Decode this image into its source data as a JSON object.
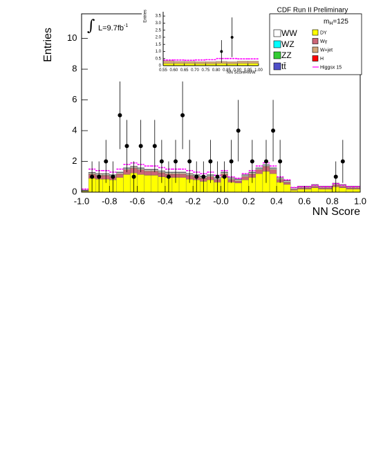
{
  "chart_data": [
    {
      "type": "histogram",
      "x_label": "NN Score",
      "y_label": "Entries",
      "annotations": {
        "preliminary": "CDF Run II Preliminary",
        "integral": "∫",
        "lumi": [
          "L=9.7fb",
          "-1"
        ],
        "mass": [
          "m",
          "H",
          "=125"
        ]
      },
      "xlim": [
        -1,
        1
      ],
      "ylim": [
        0,
        11.6
      ],
      "xticks": [
        {
          "value": -1,
          "label": "-1.0"
        },
        -0.8,
        -0.6,
        -0.4,
        -0.2,
        {
          "value": 0,
          "label": "-0.0"
        },
        0.2,
        0.4,
        0.6,
        0.8,
        {
          "value": 1,
          "label": "1.0"
        }
      ],
      "yticks": [
        0,
        2,
        4,
        6,
        8,
        10
      ],
      "bins": [
        -1,
        -0.95,
        -0.9,
        -0.85,
        -0.8,
        -0.75,
        -0.7,
        -0.65,
        -0.6,
        -0.55,
        -0.5,
        -0.45,
        -0.4,
        -0.35,
        -0.3,
        -0.25,
        -0.2,
        -0.15,
        -0.1,
        -0.05,
        0,
        0.05,
        0.1,
        0.15,
        0.2,
        0.25,
        0.3,
        0.35,
        0.4,
        0.45,
        0.5,
        0.55,
        0.6,
        0.65,
        0.7,
        0.75,
        0.8,
        0.85,
        0.9,
        0.95,
        1
      ],
      "series": [
        {
          "name": "WW",
          "color": "#ffffff",
          "values": [
            0.01,
            0.05,
            0.05,
            0.05,
            0.05,
            0.05,
            0.05,
            0.05,
            0.05,
            0.05,
            0.05,
            0.05,
            0.05,
            0.05,
            0.05,
            0.05,
            0.05,
            0.05,
            0.05,
            0.05,
            0.05,
            0.05,
            0.05,
            0.05,
            0.05,
            0.05,
            0.05,
            0.05,
            0.05,
            0.05,
            0.05,
            0.05,
            0.05,
            0.05,
            0.05,
            0.05,
            0.05,
            0.05,
            0.05,
            0.05
          ]
        },
        {
          "name": "WZ",
          "color": "#00ffff",
          "values": [
            0.01,
            0.01,
            0.01,
            0.01,
            0.01,
            0.01,
            0.01,
            0.01,
            0.01,
            0.01,
            0.01,
            0.01,
            0.01,
            0.01,
            0.01,
            0.01,
            0.01,
            0.01,
            0.01,
            0.01,
            0.01,
            0.01,
            0.01,
            0.01,
            0.01,
            0.01,
            0.01,
            0.01,
            0.01,
            0.01,
            0.01,
            0.01,
            0.01,
            0.01,
            0.01,
            0.01,
            0.01,
            0.01,
            0.01,
            0.01
          ]
        },
        {
          "name": "ZZ",
          "color": "#33cc33",
          "values": [
            0.01,
            0.01,
            0.01,
            0.01,
            0.01,
            0.01,
            0.01,
            0.01,
            0.01,
            0.01,
            0.01,
            0.01,
            0.01,
            0.01,
            0.01,
            0.01,
            0.01,
            0.01,
            0.01,
            0.01,
            0.01,
            0.01,
            0.01,
            0.01,
            0.01,
            0.01,
            0.01,
            0.01,
            0.01,
            0.01,
            0.01,
            0.01,
            0.01,
            0.01,
            0.01,
            0.01,
            0.01,
            0.01,
            0.01,
            0.01
          ]
        },
        {
          "name": "tt̄",
          "color": "#5050c8",
          "values": [
            0.01,
            0.01,
            0.01,
            0.01,
            0.01,
            0.01,
            0.01,
            0.01,
            0.01,
            0.01,
            0.01,
            0.01,
            0.01,
            0.01,
            0.01,
            0.01,
            0.01,
            0.01,
            0.01,
            0.01,
            0.01,
            0.01,
            0.01,
            0.01,
            0.01,
            0.01,
            0.01,
            0.01,
            0.01,
            0.01,
            0.01,
            0.01,
            0.01,
            0.01,
            0.01,
            0.01,
            0.01,
            0.01,
            0.01,
            0.01
          ]
        },
        {
          "name": "DY",
          "color": "#ffff00",
          "values": [
            0.05,
            0.9,
            0.85,
            0.85,
            0.8,
            0.95,
            1.15,
            1.25,
            1.15,
            1.1,
            1.1,
            1.0,
            0.95,
            0.95,
            0.95,
            0.85,
            0.8,
            0.7,
            0.8,
            0.65,
            0.95,
            0.65,
            0.6,
            0.8,
            0.95,
            1.2,
            1.35,
            1.2,
            0.65,
            0.5,
            0.12,
            0.2,
            0.2,
            0.28,
            0.2,
            0.2,
            0.35,
            0.28,
            0.2,
            0.2
          ]
        },
        {
          "name": "Wγ",
          "color": "#cc6677",
          "values": [
            0.02,
            0.25,
            0.22,
            0.22,
            0.2,
            0.22,
            0.3,
            0.3,
            0.3,
            0.25,
            0.25,
            0.25,
            0.22,
            0.22,
            0.22,
            0.22,
            0.2,
            0.2,
            0.2,
            0.15,
            0.22,
            0.15,
            0.12,
            0.2,
            0.22,
            0.25,
            0.3,
            0.25,
            0.15,
            0.12,
            0.05,
            0.06,
            0.06,
            0.08,
            0.06,
            0.06,
            0.1,
            0.08,
            0.06,
            0.06
          ]
        },
        {
          "name": "W+jet",
          "color": "#d2a679",
          "values": [
            0.02,
            0.05,
            0.05,
            0.05,
            0.05,
            0.05,
            0.05,
            0.05,
            0.05,
            0.05,
            0.05,
            0.05,
            0.05,
            0.05,
            0.05,
            0.05,
            0.05,
            0.05,
            0.05,
            0.05,
            0.05,
            0.05,
            0.05,
            0.05,
            0.05,
            0.05,
            0.05,
            0.05,
            0.05,
            0.05,
            0.05,
            0.05,
            0.05,
            0.05,
            0.05,
            0.05,
            0.05,
            0.05,
            0.05,
            0.05
          ]
        },
        {
          "name": "H",
          "color": "#ff0000",
          "values": [
            0.01,
            0.01,
            0.01,
            0.01,
            0.01,
            0.01,
            0.01,
            0.01,
            0.01,
            0.01,
            0.01,
            0.01,
            0.01,
            0.01,
            0.01,
            0.01,
            0.01,
            0.01,
            0.01,
            0.01,
            0.01,
            0.01,
            0.01,
            0.01,
            0.01,
            0.01,
            0.01,
            0.01,
            0.01,
            0.01,
            0.01,
            0.01,
            0.01,
            0.01,
            0.01,
            0.01,
            0.01,
            0.01,
            0.01,
            0.01
          ]
        },
        {
          "name": "Higgsx 15",
          "color": "#ff00ff",
          "style": "line",
          "values": [
            0.2,
            1.5,
            1.4,
            1.4,
            1.3,
            1.5,
            1.8,
            1.9,
            1.8,
            1.7,
            1.7,
            1.6,
            1.5,
            1.5,
            1.5,
            1.4,
            1.3,
            1.2,
            1.3,
            1.1,
            1.4,
            1.0,
            0.9,
            1.2,
            1.4,
            1.7,
            1.9,
            1.7,
            1.0,
            0.8,
            0.3,
            0.35,
            0.35,
            0.45,
            0.35,
            0.35,
            0.55,
            0.45,
            0.35,
            0.35
          ]
        }
      ],
      "points": {
        "color": "#000000",
        "x": [
          -0.925,
          -0.875,
          -0.825,
          -0.775,
          -0.725,
          -0.675,
          -0.625,
          -0.575,
          -0.475,
          -0.425,
          -0.375,
          -0.325,
          -0.275,
          -0.225,
          -0.175,
          -0.125,
          -0.075,
          -0.025,
          0.025,
          0.075,
          0.125,
          0.225,
          0.325,
          0.375,
          0.425,
          0.825,
          0.875
        ],
        "values": [
          1,
          1,
          2,
          1,
          5,
          3,
          1,
          3,
          3,
          2,
          1,
          2,
          5,
          2,
          1,
          1,
          2,
          1,
          1,
          2,
          4,
          2,
          2,
          4,
          2,
          1,
          2
        ],
        "errors": [
          1,
          1,
          1.4,
          1,
          2.2,
          1.7,
          1,
          1.7,
          1.7,
          1.4,
          1,
          1.4,
          2.2,
          1.4,
          1,
          1,
          1.4,
          1,
          1,
          1.4,
          2,
          1.4,
          1.4,
          2,
          1.4,
          1,
          1.4
        ]
      }
    },
    {
      "type": "histogram",
      "x_label": "NN ScoreHWW",
      "y_label": "Entries",
      "xlim": [
        0.55,
        1.0
      ],
      "ylim": [
        0,
        3.8
      ],
      "xticks": [
        0.55,
        {
          "value": 0.6,
          "label": "0.60"
        },
        0.65,
        {
          "value": 0.7,
          "label": "0.70"
        },
        0.75,
        {
          "value": 0.8,
          "label": "0.80"
        },
        0.85,
        {
          "value": 0.9,
          "label": "0.90"
        },
        0.95,
        {
          "value": 1,
          "label": "1.00"
        }
      ],
      "yticks": [
        0,
        0.5,
        {
          "value": 1,
          "label": "1.0"
        },
        1.5,
        {
          "value": 2,
          "label": "2.0"
        },
        2.5,
        {
          "value": 3,
          "label": "3.0"
        },
        3.5
      ],
      "bins": [
        0.55,
        0.6,
        0.65,
        0.7,
        0.75,
        0.8,
        0.85,
        0.9,
        0.95,
        1.0
      ],
      "series": [
        {
          "color": "#ffff00",
          "values": [
            0.15,
            0.15,
            0.15,
            0.14,
            0.14,
            0.15,
            0.14,
            0.16,
            0.16
          ]
        },
        {
          "color": "#d2a679",
          "values": [
            0.2,
            0.15,
            0.15,
            0.14,
            0.14,
            0.15,
            0.14,
            0.16,
            0.16
          ]
        },
        {
          "color": "#ff00ff",
          "style": "line",
          "values": [
            0.4,
            0.4,
            0.38,
            0.4,
            0.42,
            0.5,
            0.5,
            0.48,
            0.48
          ]
        }
      ],
      "points": {
        "color": "#000000",
        "x": [
          0.825,
          0.875
        ],
        "values": [
          1,
          2
        ],
        "errors": [
          0.8,
          1.4
        ]
      }
    }
  ]
}
